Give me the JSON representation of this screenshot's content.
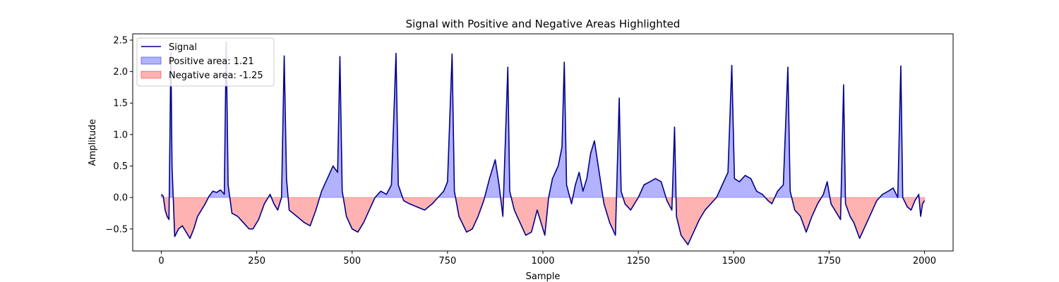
{
  "chart_data": {
    "type": "area",
    "title": "Signal with Positive and Negative Areas Highlighted",
    "xlabel": "Sample",
    "ylabel": "Amplitude",
    "xlim": [
      -75,
      2075
    ],
    "ylim": [
      -0.85,
      2.6
    ],
    "xticks": [
      0,
      250,
      500,
      750,
      1000,
      1250,
      1500,
      1750,
      2000
    ],
    "yticks": [
      -0.5,
      0.0,
      0.5,
      1.0,
      1.5,
      2.0,
      2.5
    ],
    "ytick_labels": [
      "−0.5",
      "0.0",
      "0.5",
      "1.0",
      "1.5",
      "2.0",
      "2.5"
    ],
    "grid": false,
    "legend_position": "upper-left",
    "legend": [
      {
        "label": "Signal",
        "kind": "line",
        "color": "#00008b"
      },
      {
        "label": "Positive area: 1.21",
        "kind": "patch",
        "color": "#0000ff"
      },
      {
        "label": "Negative area: -1.25",
        "kind": "patch",
        "color": "#ff0000"
      }
    ],
    "series": [
      {
        "name": "Signal",
        "color": "#00008b",
        "points": [
          [
            0,
            0.05
          ],
          [
            5,
            0.02
          ],
          [
            10,
            -0.2
          ],
          [
            15,
            -0.3
          ],
          [
            20,
            -0.35
          ],
          [
            25,
            2.3
          ],
          [
            28,
            0.5
          ],
          [
            35,
            -0.62
          ],
          [
            45,
            -0.5
          ],
          [
            55,
            -0.45
          ],
          [
            65,
            -0.55
          ],
          [
            75,
            -0.65
          ],
          [
            85,
            -0.5
          ],
          [
            95,
            -0.3
          ],
          [
            105,
            -0.2
          ],
          [
            115,
            -0.1
          ],
          [
            125,
            0.02
          ],
          [
            135,
            0.1
          ],
          [
            145,
            0.08
          ],
          [
            155,
            0.12
          ],
          [
            165,
            0.05
          ],
          [
            170,
            2.47
          ],
          [
            175,
            0.2
          ],
          [
            185,
            -0.25
          ],
          [
            200,
            -0.3
          ],
          [
            215,
            -0.4
          ],
          [
            230,
            -0.5
          ],
          [
            240,
            -0.5
          ],
          [
            255,
            -0.35
          ],
          [
            270,
            -0.1
          ],
          [
            285,
            0.05
          ],
          [
            295,
            -0.1
          ],
          [
            305,
            -0.2
          ],
          [
            315,
            0.0
          ],
          [
            322,
            2.25
          ],
          [
            328,
            0.3
          ],
          [
            335,
            -0.2
          ],
          [
            355,
            -0.3
          ],
          [
            375,
            -0.4
          ],
          [
            390,
            -0.45
          ],
          [
            405,
            -0.2
          ],
          [
            420,
            0.1
          ],
          [
            435,
            0.3
          ],
          [
            450,
            0.5
          ],
          [
            462,
            0.4
          ],
          [
            468,
            2.24
          ],
          [
            474,
            0.1
          ],
          [
            485,
            -0.3
          ],
          [
            500,
            -0.5
          ],
          [
            515,
            -0.55
          ],
          [
            530,
            -0.4
          ],
          [
            545,
            -0.2
          ],
          [
            560,
            0.0
          ],
          [
            575,
            0.1
          ],
          [
            590,
            0.05
          ],
          [
            603,
            0.2
          ],
          [
            615,
            2.29
          ],
          [
            621,
            0.2
          ],
          [
            635,
            -0.05
          ],
          [
            650,
            -0.1
          ],
          [
            670,
            -0.15
          ],
          [
            690,
            -0.2
          ],
          [
            710,
            -0.1
          ],
          [
            725,
            0.0
          ],
          [
            740,
            0.1
          ],
          [
            750,
            0.25
          ],
          [
            762,
            2.28
          ],
          [
            768,
            0.1
          ],
          [
            780,
            -0.3
          ],
          [
            800,
            -0.55
          ],
          [
            815,
            -0.5
          ],
          [
            830,
            -0.3
          ],
          [
            845,
            -0.05
          ],
          [
            860,
            0.3
          ],
          [
            875,
            0.6
          ],
          [
            885,
            0.2
          ],
          [
            895,
            -0.3
          ],
          [
            908,
            2.07
          ],
          [
            913,
            0.1
          ],
          [
            925,
            -0.2
          ],
          [
            940,
            -0.4
          ],
          [
            955,
            -0.6
          ],
          [
            970,
            -0.55
          ],
          [
            985,
            -0.2
          ],
          [
            995,
            -0.4
          ],
          [
            1005,
            -0.6
          ],
          [
            1015,
            0.0
          ],
          [
            1025,
            0.3
          ],
          [
            1040,
            0.5
          ],
          [
            1050,
            0.8
          ],
          [
            1056,
            2.15
          ],
          [
            1062,
            0.2
          ],
          [
            1075,
            -0.1
          ],
          [
            1085,
            0.2
          ],
          [
            1095,
            0.4
          ],
          [
            1105,
            0.1
          ],
          [
            1115,
            0.3
          ],
          [
            1125,
            0.7
          ],
          [
            1135,
            0.9
          ],
          [
            1145,
            0.5
          ],
          [
            1160,
            -0.1
          ],
          [
            1175,
            -0.4
          ],
          [
            1190,
            -0.6
          ],
          [
            1200,
            1.58
          ],
          [
            1205,
            0.1
          ],
          [
            1215,
            -0.1
          ],
          [
            1230,
            -0.2
          ],
          [
            1250,
            0.0
          ],
          [
            1265,
            0.2
          ],
          [
            1280,
            0.25
          ],
          [
            1295,
            0.3
          ],
          [
            1310,
            0.25
          ],
          [
            1325,
            -0.05
          ],
          [
            1338,
            -0.2
          ],
          [
            1345,
            1.12
          ],
          [
            1350,
            -0.3
          ],
          [
            1362,
            -0.6
          ],
          [
            1380,
            -0.75
          ],
          [
            1395,
            -0.55
          ],
          [
            1410,
            -0.35
          ],
          [
            1425,
            -0.2
          ],
          [
            1440,
            -0.1
          ],
          [
            1455,
            0.0
          ],
          [
            1470,
            0.2
          ],
          [
            1485,
            0.4
          ],
          [
            1495,
            2.1
          ],
          [
            1502,
            0.3
          ],
          [
            1515,
            0.25
          ],
          [
            1530,
            0.35
          ],
          [
            1545,
            0.3
          ],
          [
            1560,
            0.1
          ],
          [
            1575,
            0.05
          ],
          [
            1590,
            -0.05
          ],
          [
            1600,
            -0.1
          ],
          [
            1615,
            0.1
          ],
          [
            1630,
            0.2
          ],
          [
            1642,
            2.07
          ],
          [
            1648,
            0.1
          ],
          [
            1660,
            -0.2
          ],
          [
            1675,
            -0.3
          ],
          [
            1690,
            -0.55
          ],
          [
            1705,
            -0.3
          ],
          [
            1720,
            -0.1
          ],
          [
            1735,
            0.05
          ],
          [
            1745,
            0.25
          ],
          [
            1755,
            -0.1
          ],
          [
            1770,
            -0.25
          ],
          [
            1780,
            -0.35
          ],
          [
            1788,
            1.79
          ],
          [
            1793,
            -0.1
          ],
          [
            1805,
            -0.3
          ],
          [
            1815,
            -0.4
          ],
          [
            1830,
            -0.65
          ],
          [
            1845,
            -0.45
          ],
          [
            1860,
            -0.25
          ],
          [
            1875,
            -0.05
          ],
          [
            1890,
            0.05
          ],
          [
            1905,
            0.1
          ],
          [
            1918,
            0.15
          ],
          [
            1930,
            0.0
          ],
          [
            1938,
            2.09
          ],
          [
            1943,
            0.0
          ],
          [
            1955,
            -0.15
          ],
          [
            1965,
            -0.2
          ],
          [
            1975,
            -0.05
          ],
          [
            1985,
            0.05
          ],
          [
            1990,
            -0.3
          ],
          [
            1995,
            -0.1
          ],
          [
            2000,
            -0.05
          ]
        ]
      }
    ]
  }
}
